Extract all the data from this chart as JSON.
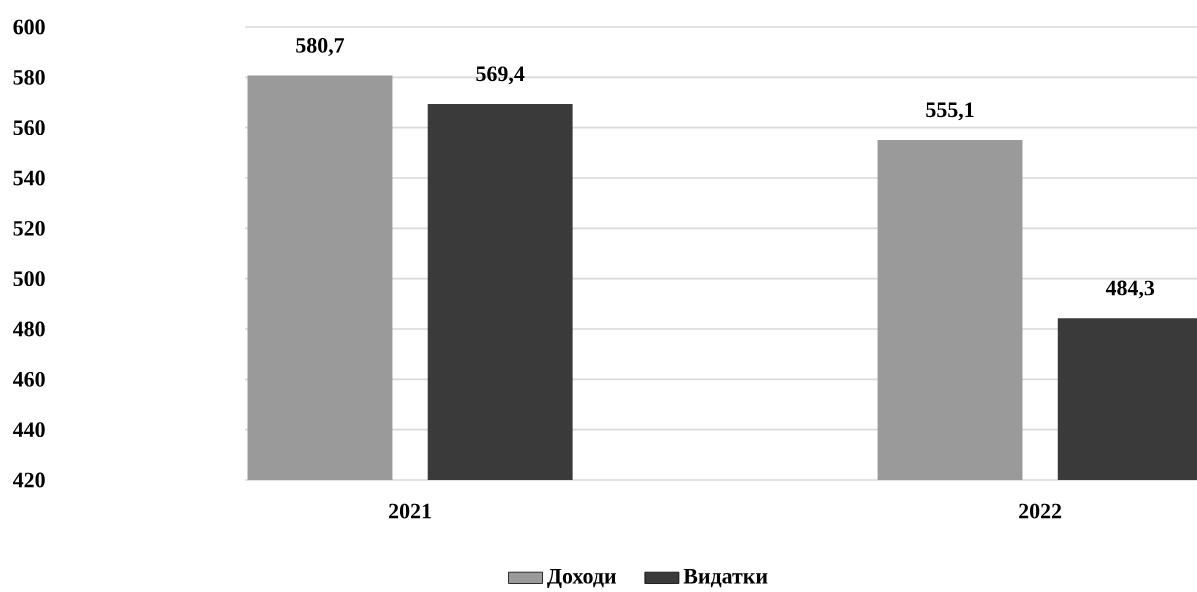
{
  "chart_data": {
    "type": "bar",
    "categories": [
      "2021",
      "2022"
    ],
    "series": [
      {
        "name": "Доходи",
        "color": "#9a9a9a",
        "values": [
          580.7,
          555.1
        ],
        "value_labels": [
          "580,7",
          "555,1"
        ]
      },
      {
        "name": "Видатки",
        "color": "#3a3a3a",
        "values": [
          569.4,
          484.3
        ],
        "value_labels": [
          "569,4",
          "484,3"
        ]
      }
    ],
    "ylim": [
      420,
      600
    ],
    "yticks": [
      420,
      440,
      460,
      480,
      500,
      520,
      540,
      560,
      580,
      600
    ],
    "grid": "y",
    "legend": "bottom"
  }
}
